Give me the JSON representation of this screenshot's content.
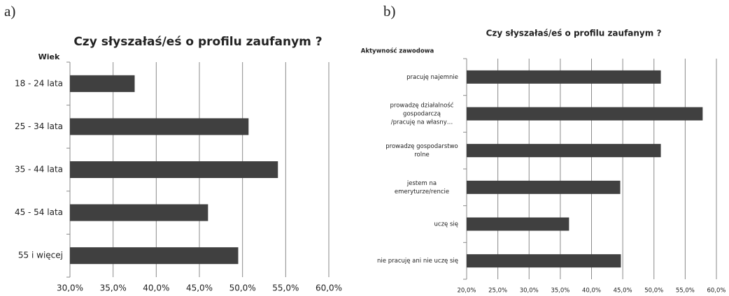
{
  "chart_data": [
    {
      "type": "bar",
      "panel_label": "a)",
      "title": "Czy słyszałaś/eś o profilu zaufanym ?",
      "y_axis_label": "Wiek",
      "categories": [
        "18 - 24 lata",
        "25 - 34 lata",
        "35 - 44 lata",
        "45 - 54 lata",
        "55 i więcej"
      ],
      "values": [
        37.5,
        50.7,
        54.1,
        46.0,
        49.5
      ],
      "color": "#404040",
      "xlim": [
        30,
        60
      ],
      "xticks": [
        {
          "value": 30,
          "label": "30,0%"
        },
        {
          "value": 35,
          "label": "35,0%"
        },
        {
          "value": 40,
          "label": "40,0%"
        },
        {
          "value": 45,
          "label": "45,0%"
        },
        {
          "value": 50,
          "label": "50,0%"
        },
        {
          "value": 55,
          "label": "55,0%"
        },
        {
          "value": 60,
          "label": "60,0%"
        }
      ],
      "grid": true
    },
    {
      "type": "bar",
      "panel_label": "b)",
      "title": "Czy słyszałaś/eś o profilu zaufanym ?",
      "y_axis_label": "Aktywność zawodowa",
      "categories": [
        [
          "pracuję najemnie"
        ],
        [
          "prowadzę działalność",
          "gospodarczą",
          "/pracuję na własny…"
        ],
        [
          "prowadzę gospodarstwo",
          "rolne"
        ],
        [
          "jestem na",
          "emeryturze/rencie"
        ],
        [
          "uczę się"
        ],
        [
          "nie pracuję ani nie uczę się"
        ]
      ],
      "values": [
        51.1,
        57.8,
        51.1,
        44.6,
        36.4,
        44.7
      ],
      "color": "#404040",
      "xlim": [
        20,
        60
      ],
      "xticks": [
        {
          "value": 20,
          "label": "20,0%"
        },
        {
          "value": 25,
          "label": "25,0%"
        },
        {
          "value": 30,
          "label": "30,0%"
        },
        {
          "value": 35,
          "label": "35,0%"
        },
        {
          "value": 40,
          "label": "40,0%"
        },
        {
          "value": 45,
          "label": "45,0%"
        },
        {
          "value": 50,
          "label": "50,0%"
        },
        {
          "value": 55,
          "label": "55,0%"
        },
        {
          "value": 60,
          "label": "60,0%"
        }
      ],
      "grid": true
    }
  ]
}
